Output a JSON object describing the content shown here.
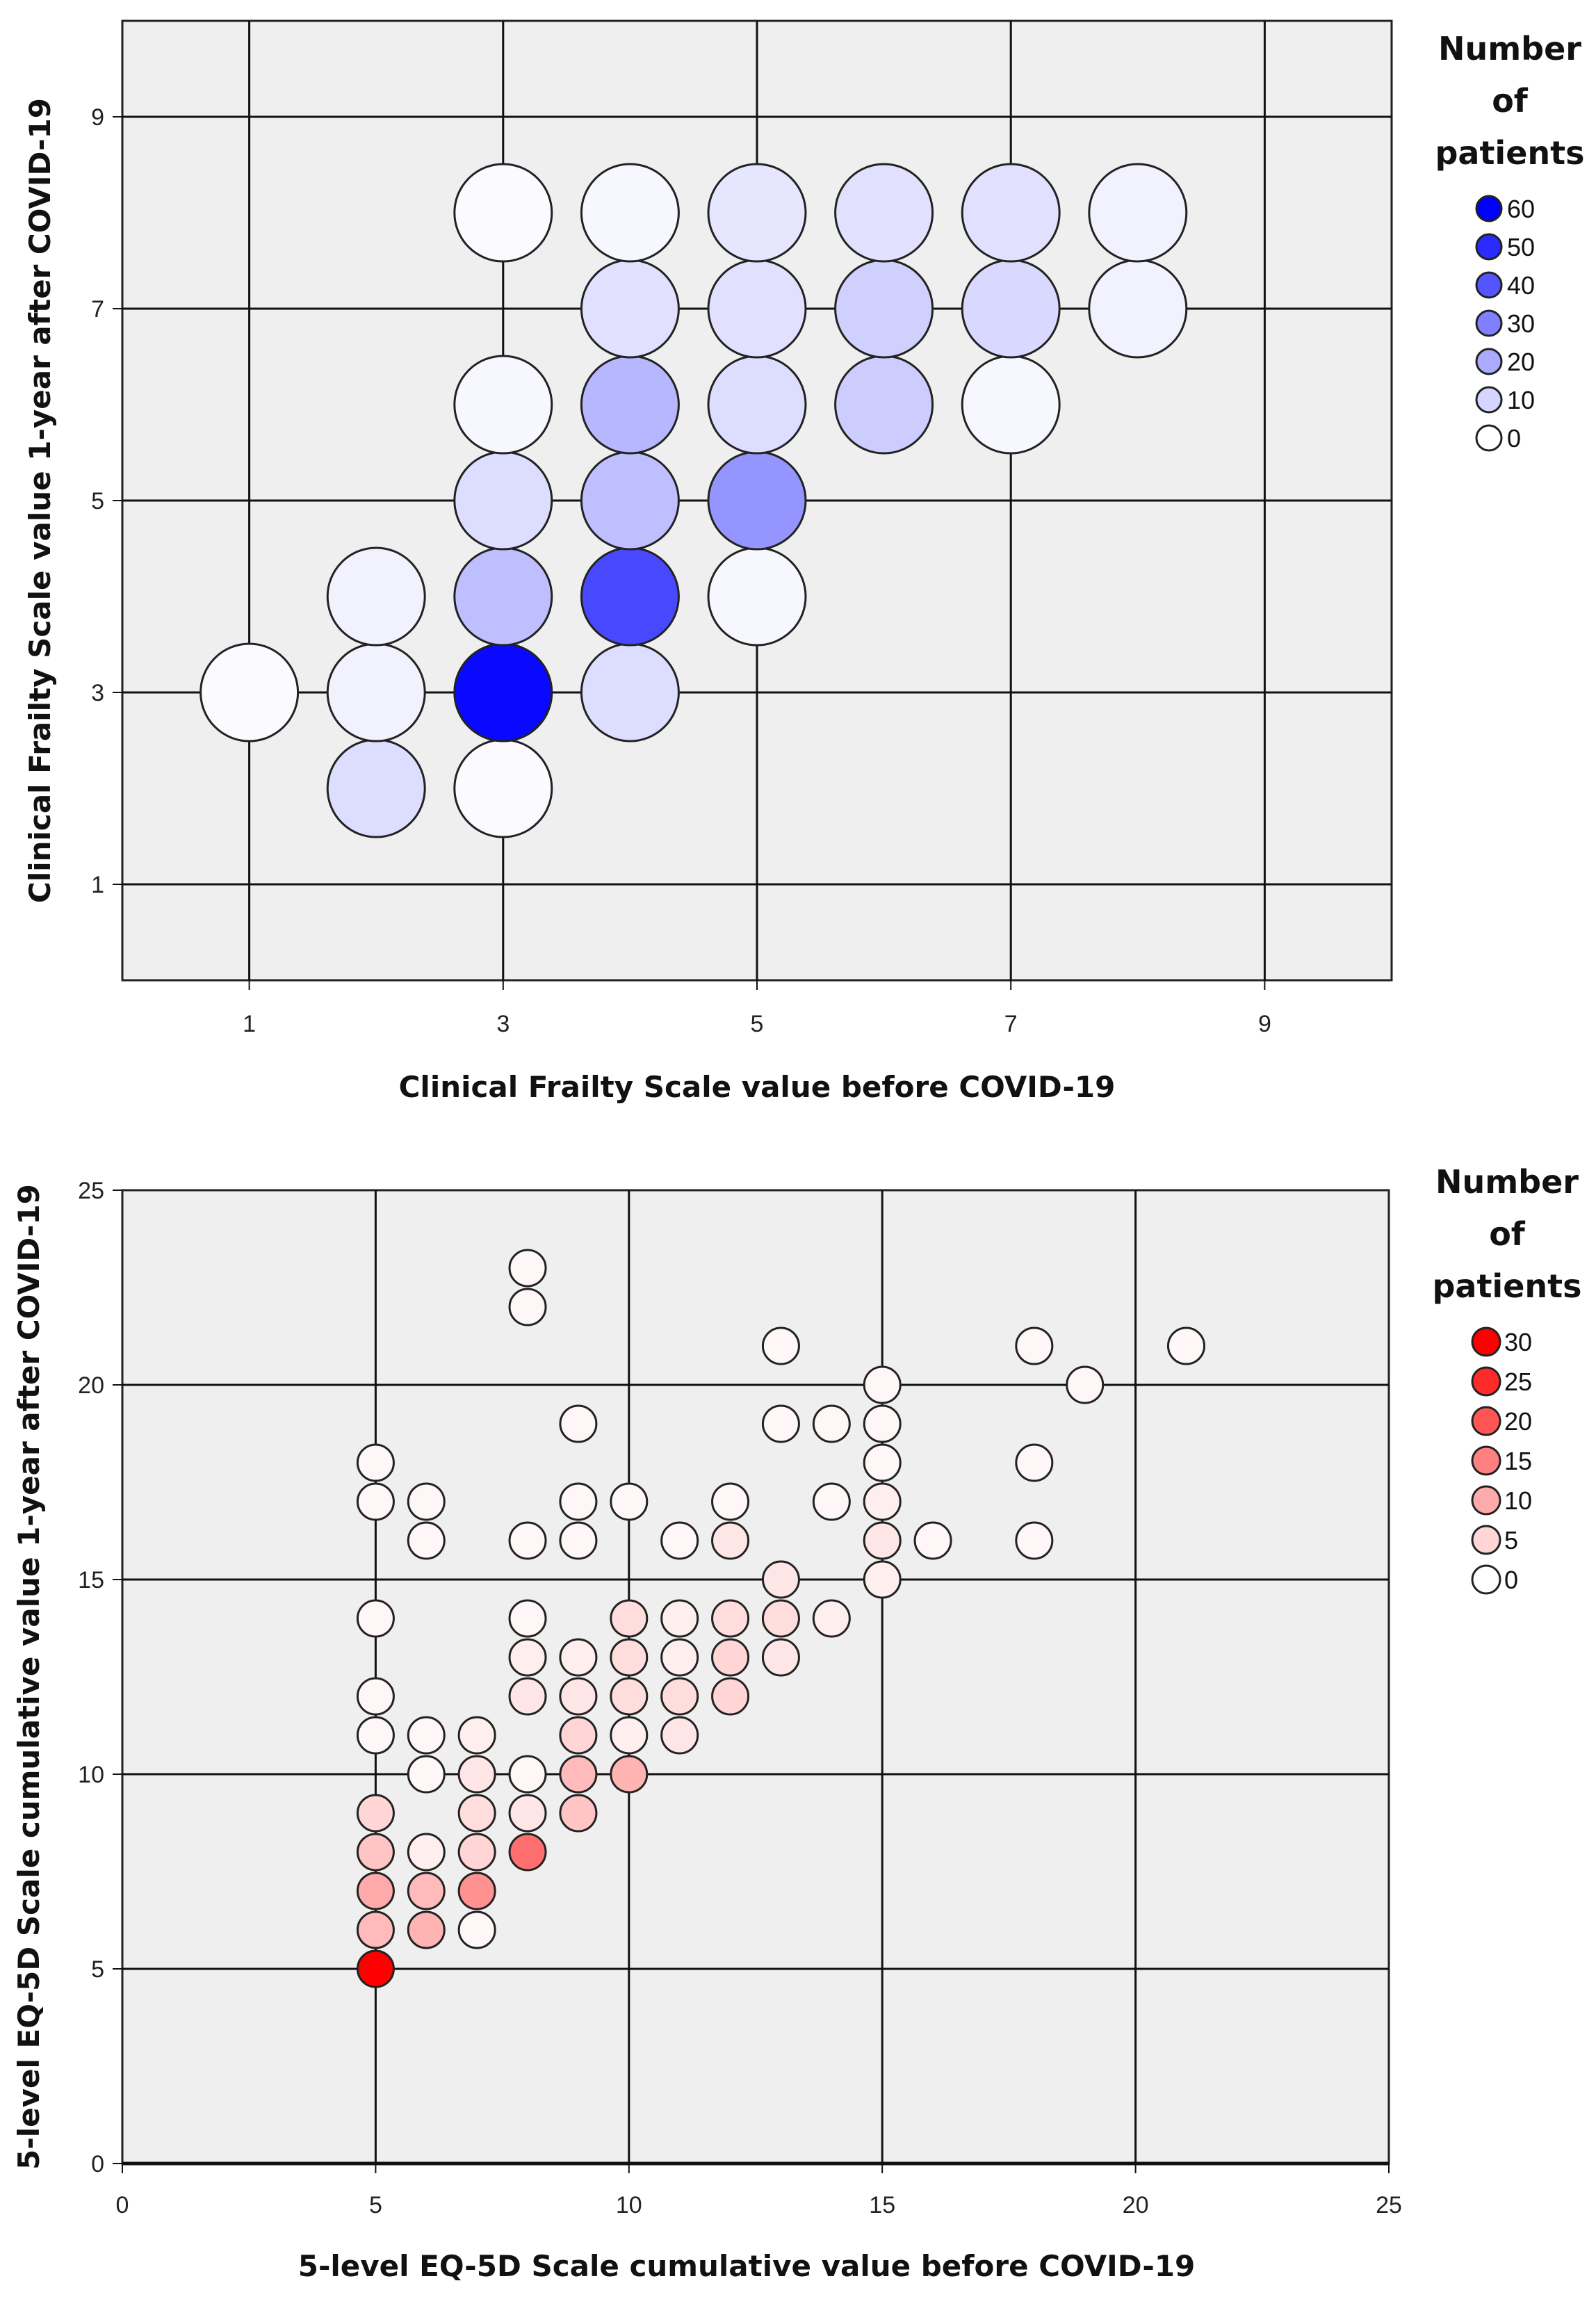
{
  "chart_data": [
    {
      "type": "scatter",
      "title": "",
      "xlabel": "Clinical Frailty Scale value before COVID-19",
      "ylabel": "Clinical Frailty Scale value 1-year after COVID-19",
      "xlim": [
        0,
        10
      ],
      "ylim": [
        0,
        10
      ],
      "xticks": [
        1,
        3,
        5,
        7,
        9
      ],
      "yticks": [
        1,
        3,
        5,
        7,
        9
      ],
      "grid": true,
      "legend": {
        "title": [
          "Number",
          "of",
          "patients"
        ],
        "position": "top-right",
        "entries": [
          {
            "label": "60",
            "value": 60
          },
          {
            "label": "50",
            "value": 50
          },
          {
            "label": "40",
            "value": 40
          },
          {
            "label": "30",
            "value": 30
          },
          {
            "label": "20",
            "value": 20
          },
          {
            "label": "10",
            "value": 10
          },
          {
            "label": "0",
            "value": 0
          }
        ]
      },
      "color_scale": {
        "low": "#ffffff",
        "high": "#0000ff",
        "max": 60
      },
      "points": [
        {
          "x": 1,
          "y": 3,
          "n": 1
        },
        {
          "x": 2,
          "y": 2,
          "n": 8
        },
        {
          "x": 2,
          "y": 3,
          "n": 3
        },
        {
          "x": 2,
          "y": 4,
          "n": 3
        },
        {
          "x": 3,
          "y": 2,
          "n": 1
        },
        {
          "x": 3,
          "y": 3,
          "n": 58
        },
        {
          "x": 3,
          "y": 4,
          "n": 15
        },
        {
          "x": 3,
          "y": 5,
          "n": 8
        },
        {
          "x": 3,
          "y": 6,
          "n": 2
        },
        {
          "x": 3,
          "y": 8,
          "n": 1
        },
        {
          "x": 4,
          "y": 3,
          "n": 8
        },
        {
          "x": 4,
          "y": 4,
          "n": 43
        },
        {
          "x": 4,
          "y": 5,
          "n": 15
        },
        {
          "x": 4,
          "y": 6,
          "n": 17
        },
        {
          "x": 4,
          "y": 7,
          "n": 7
        },
        {
          "x": 4,
          "y": 8,
          "n": 2
        },
        {
          "x": 5,
          "y": 4,
          "n": 2
        },
        {
          "x": 5,
          "y": 5,
          "n": 25
        },
        {
          "x": 5,
          "y": 6,
          "n": 8
        },
        {
          "x": 5,
          "y": 7,
          "n": 7
        },
        {
          "x": 5,
          "y": 8,
          "n": 6
        },
        {
          "x": 6,
          "y": 6,
          "n": 12
        },
        {
          "x": 6,
          "y": 7,
          "n": 11
        },
        {
          "x": 6,
          "y": 8,
          "n": 7
        },
        {
          "x": 7,
          "y": 6,
          "n": 2
        },
        {
          "x": 7,
          "y": 7,
          "n": 9
        },
        {
          "x": 7,
          "y": 8,
          "n": 7
        },
        {
          "x": 8,
          "y": 7,
          "n": 3
        },
        {
          "x": 8,
          "y": 8,
          "n": 3
        }
      ]
    },
    {
      "type": "scatter",
      "title": "",
      "xlabel": "5-level EQ-5D Scale cumulative value before COVID-19",
      "ylabel": "5-level EQ-5D Scale cumulative value 1-year after COVID-19",
      "xlim": [
        0,
        25
      ],
      "ylim": [
        0,
        25
      ],
      "xticks": [
        0,
        5,
        10,
        15,
        20,
        25
      ],
      "yticks": [
        0,
        5,
        10,
        15,
        20,
        25
      ],
      "grid": true,
      "legend": {
        "title": [
          "Number",
          "of",
          "patients"
        ],
        "position": "top-right",
        "entries": [
          {
            "label": "30",
            "value": 30
          },
          {
            "label": "25",
            "value": 25
          },
          {
            "label": "20",
            "value": 20
          },
          {
            "label": "15",
            "value": 15
          },
          {
            "label": "10",
            "value": 10
          },
          {
            "label": "5",
            "value": 5
          },
          {
            "label": "0",
            "value": 0
          }
        ]
      },
      "color_scale": {
        "low": "#ffffff",
        "high": "#ff0000",
        "max": 30
      },
      "points": [
        {
          "x": 5,
          "y": 5,
          "n": 30
        },
        {
          "x": 5,
          "y": 6,
          "n": 8
        },
        {
          "x": 5,
          "y": 7,
          "n": 10
        },
        {
          "x": 5,
          "y": 8,
          "n": 7
        },
        {
          "x": 5,
          "y": 9,
          "n": 5
        },
        {
          "x": 5,
          "y": 11,
          "n": 1
        },
        {
          "x": 5,
          "y": 12,
          "n": 1
        },
        {
          "x": 5,
          "y": 14,
          "n": 1
        },
        {
          "x": 5,
          "y": 17,
          "n": 1
        },
        {
          "x": 5,
          "y": 18,
          "n": 1
        },
        {
          "x": 6,
          "y": 6,
          "n": 9
        },
        {
          "x": 6,
          "y": 7,
          "n": 8
        },
        {
          "x": 6,
          "y": 8,
          "n": 2
        },
        {
          "x": 6,
          "y": 10,
          "n": 1
        },
        {
          "x": 6,
          "y": 11,
          "n": 1
        },
        {
          "x": 6,
          "y": 16,
          "n": 1
        },
        {
          "x": 6,
          "y": 17,
          "n": 1
        },
        {
          "x": 7,
          "y": 6,
          "n": 1
        },
        {
          "x": 7,
          "y": 7,
          "n": 13
        },
        {
          "x": 7,
          "y": 8,
          "n": 5
        },
        {
          "x": 7,
          "y": 9,
          "n": 4
        },
        {
          "x": 7,
          "y": 10,
          "n": 3
        },
        {
          "x": 7,
          "y": 11,
          "n": 2
        },
        {
          "x": 8,
          "y": 8,
          "n": 17
        },
        {
          "x": 8,
          "y": 9,
          "n": 3
        },
        {
          "x": 8,
          "y": 10,
          "n": 1
        },
        {
          "x": 8,
          "y": 12,
          "n": 3
        },
        {
          "x": 8,
          "y": 13,
          "n": 2
        },
        {
          "x": 8,
          "y": 14,
          "n": 1
        },
        {
          "x": 8,
          "y": 16,
          "n": 1
        },
        {
          "x": 8,
          "y": 22,
          "n": 1
        },
        {
          "x": 8,
          "y": 23,
          "n": 1
        },
        {
          "x": 9,
          "y": 9,
          "n": 7
        },
        {
          "x": 9,
          "y": 10,
          "n": 8
        },
        {
          "x": 9,
          "y": 11,
          "n": 5
        },
        {
          "x": 9,
          "y": 12,
          "n": 3
        },
        {
          "x": 9,
          "y": 13,
          "n": 2
        },
        {
          "x": 9,
          "y": 16,
          "n": 1
        },
        {
          "x": 9,
          "y": 17,
          "n": 1
        },
        {
          "x": 9,
          "y": 19,
          "n": 1
        },
        {
          "x": 10,
          "y": 10,
          "n": 9
        },
        {
          "x": 10,
          "y": 11,
          "n": 2
        },
        {
          "x": 10,
          "y": 12,
          "n": 4
        },
        {
          "x": 10,
          "y": 13,
          "n": 4
        },
        {
          "x": 10,
          "y": 14,
          "n": 4
        },
        {
          "x": 10,
          "y": 17,
          "n": 1
        },
        {
          "x": 11,
          "y": 11,
          "n": 3
        },
        {
          "x": 11,
          "y": 12,
          "n": 4
        },
        {
          "x": 11,
          "y": 13,
          "n": 2
        },
        {
          "x": 11,
          "y": 14,
          "n": 2
        },
        {
          "x": 11,
          "y": 16,
          "n": 1
        },
        {
          "x": 12,
          "y": 12,
          "n": 5
        },
        {
          "x": 12,
          "y": 13,
          "n": 5
        },
        {
          "x": 12,
          "y": 14,
          "n": 4
        },
        {
          "x": 12,
          "y": 16,
          "n": 3
        },
        {
          "x": 12,
          "y": 17,
          "n": 1
        },
        {
          "x": 13,
          "y": 13,
          "n": 3
        },
        {
          "x": 13,
          "y": 14,
          "n": 4
        },
        {
          "x": 13,
          "y": 15,
          "n": 3
        },
        {
          "x": 13,
          "y": 19,
          "n": 1
        },
        {
          "x": 13,
          "y": 21,
          "n": 1
        },
        {
          "x": 14,
          "y": 14,
          "n": 2
        },
        {
          "x": 14,
          "y": 17,
          "n": 1
        },
        {
          "x": 14,
          "y": 19,
          "n": 1
        },
        {
          "x": 15,
          "y": 15,
          "n": 2
        },
        {
          "x": 15,
          "y": 16,
          "n": 3
        },
        {
          "x": 15,
          "y": 17,
          "n": 2
        },
        {
          "x": 15,
          "y": 18,
          "n": 1
        },
        {
          "x": 15,
          "y": 19,
          "n": 1
        },
        {
          "x": 15,
          "y": 20,
          "n": 1
        },
        {
          "x": 16,
          "y": 16,
          "n": 1
        },
        {
          "x": 18,
          "y": 16,
          "n": 1
        },
        {
          "x": 18,
          "y": 18,
          "n": 1
        },
        {
          "x": 18,
          "y": 21,
          "n": 1
        },
        {
          "x": 19,
          "y": 20,
          "n": 1
        },
        {
          "x": 21,
          "y": 21,
          "n": 1
        }
      ]
    }
  ]
}
